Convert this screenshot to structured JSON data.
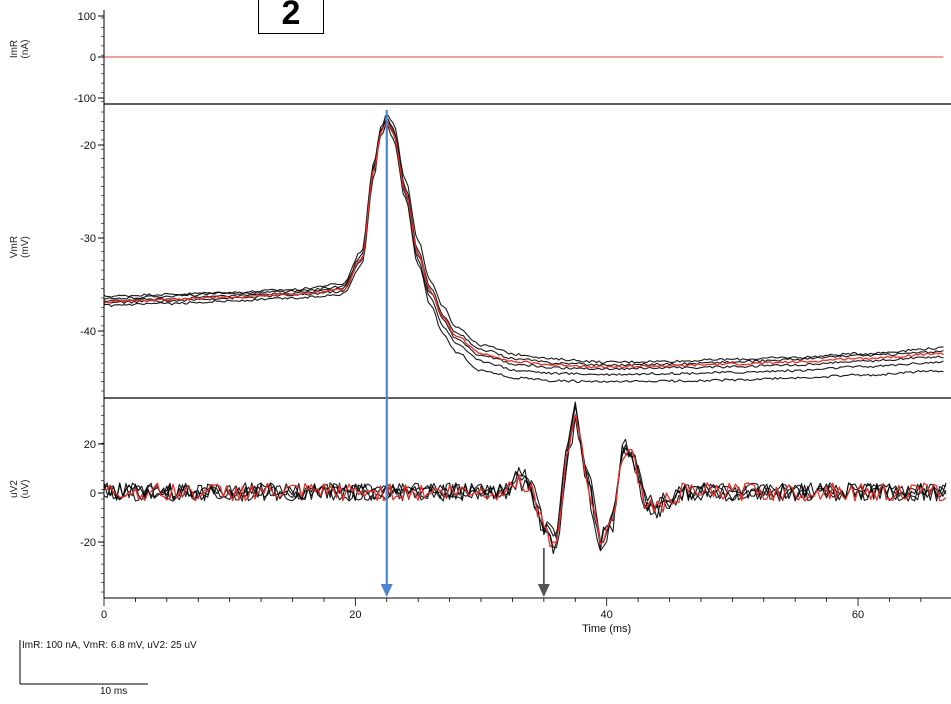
{
  "badge": "2",
  "scale_info": "ImR: 100 nA, VmR: 6.8 mV, uV2: 25 uV",
  "scale_bar": "10 ms",
  "colors": {
    "trace": "#000000",
    "mean_trace": "#e8312c",
    "blue_arrow": "#4a86d0",
    "gray_arrow": "#555555",
    "stim_line": "#e8312c"
  },
  "chart_data": [
    {
      "type": "line",
      "panel": "ImR",
      "ylabel": [
        "ImR",
        "(nA)"
      ],
      "yticks": [
        "100",
        "0",
        "-100"
      ],
      "ylim": [
        -100,
        100
      ],
      "xlim": [
        0,
        67
      ],
      "series": [
        {
          "x": [
            0,
            67
          ],
          "values": [
            0,
            0
          ]
        }
      ]
    },
    {
      "type": "line",
      "panel": "VmR",
      "ylabel": [
        "VmR",
        "(mV)"
      ],
      "yticks": [
        "-20",
        "-30",
        "-40"
      ],
      "ylim": [
        -47,
        -16
      ],
      "xlim": [
        0,
        67
      ],
      "x": [
        0,
        5,
        10,
        15,
        19,
        20.5,
        21.5,
        22,
        22.5,
        23,
        24,
        25,
        26,
        27,
        28,
        30,
        33,
        36,
        40,
        45,
        50,
        55,
        60,
        67
      ],
      "series": [
        {
          "values": [
            -36.3,
            -36.1,
            -35.9,
            -35.6,
            -35.0,
            -31.5,
            -22.0,
            -18.5,
            -17.0,
            -17.8,
            -24.0,
            -30.5,
            -34.8,
            -37.5,
            -39.5,
            -41.5,
            -42.5,
            -43.0,
            -43.3,
            -43.2,
            -43.0,
            -42.8,
            -42.4,
            -41.8
          ]
        },
        {
          "values": [
            -36.6,
            -36.3,
            -36.0,
            -35.8,
            -35.3,
            -32.0,
            -22.5,
            -18.8,
            -17.5,
            -18.5,
            -24.8,
            -31.5,
            -35.5,
            -38.3,
            -40.2,
            -42.0,
            -43.0,
            -43.4,
            -43.6,
            -43.5,
            -43.3,
            -43.0,
            -42.6,
            -42.2
          ]
        },
        {
          "values": [
            -37.0,
            -36.8,
            -36.5,
            -36.2,
            -35.8,
            -32.5,
            -23.0,
            -19.0,
            -17.8,
            -19.0,
            -25.5,
            -32.5,
            -36.5,
            -39.5,
            -41.3,
            -43.2,
            -44.2,
            -44.5,
            -44.6,
            -44.5,
            -44.4,
            -44.2,
            -43.8,
            -43.3
          ]
        },
        {
          "values": [
            -37.3,
            -37.1,
            -36.8,
            -36.5,
            -36.1,
            -33.0,
            -23.5,
            -19.3,
            -18.2,
            -19.5,
            -26.0,
            -33.0,
            -37.3,
            -40.3,
            -42.2,
            -44.2,
            -45.0,
            -45.3,
            -45.4,
            -45.3,
            -45.2,
            -45.0,
            -44.7,
            -44.2
          ]
        },
        {
          "values": [
            -36.8,
            -36.6,
            -36.3,
            -36.0,
            -35.5,
            -32.3,
            -22.8,
            -18.9,
            -17.6,
            -18.8,
            -25.2,
            -32.0,
            -36.0,
            -38.8,
            -40.8,
            -42.6,
            -43.6,
            -43.9,
            -44.0,
            -43.9,
            -43.8,
            -43.6,
            -43.2,
            -42.7
          ]
        },
        {
          "mean": true,
          "values": [
            -36.9,
            -36.7,
            -36.4,
            -36.1,
            -35.6,
            -32.4,
            -22.9,
            -19.0,
            -17.8,
            -18.9,
            -25.3,
            -31.8,
            -35.8,
            -38.6,
            -40.5,
            -42.4,
            -43.3,
            -43.6,
            -43.8,
            -43.7,
            -43.5,
            -43.3,
            -42.9,
            -42.4
          ]
        }
      ]
    },
    {
      "type": "line",
      "panel": "uV2",
      "ylabel": [
        "uV2",
        "(uV)"
      ],
      "yticks": [
        "20",
        "0",
        "-20"
      ],
      "ylim": [
        -40,
        35
      ],
      "xlim": [
        0,
        67
      ],
      "x": [
        0,
        30,
        32,
        33,
        34,
        35,
        36,
        36.8,
        37.5,
        38.5,
        39.5,
        40.5,
        41.3,
        42.2,
        43,
        44,
        46,
        67
      ],
      "series": [
        {
          "values": [
            0,
            0,
            0,
            7,
            2,
            -14,
            -18,
            14,
            32,
            4,
            -18,
            -9,
            18,
            12,
            -4,
            -7,
            0,
            0
          ]
        },
        {
          "values": [
            0,
            0,
            0,
            5,
            0,
            -17,
            -21,
            11,
            34,
            6,
            -20,
            -11,
            16,
            14,
            -2,
            -6,
            0,
            0
          ]
        },
        {
          "values": [
            0,
            0,
            0,
            6,
            1,
            -15,
            -23,
            9,
            29,
            8,
            -17,
            -13,
            19,
            10,
            -5,
            -8,
            0,
            0
          ]
        },
        {
          "values": [
            0,
            0,
            0,
            8,
            3,
            -12,
            -19,
            16,
            30,
            2,
            -21,
            -10,
            17,
            13,
            -3,
            -5,
            0,
            0
          ]
        },
        {
          "mean": true,
          "values": [
            0,
            0,
            0,
            6,
            1,
            -15,
            -20,
            12,
            31,
            5,
            -19,
            -11,
            17,
            12,
            -4,
            -6,
            0,
            0
          ]
        }
      ]
    }
  ],
  "x_axis": {
    "xlabel": "Time (ms)",
    "ticks": [
      "0",
      "20",
      "40",
      "60"
    ],
    "xlim": [
      0,
      67
    ]
  },
  "arrows": [
    {
      "color": "blue",
      "x_ms": 22.5
    },
    {
      "color": "gray",
      "x_ms": 35.0
    }
  ]
}
